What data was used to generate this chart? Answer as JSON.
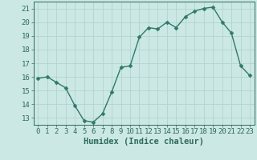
{
  "x": [
    0,
    1,
    2,
    3,
    4,
    5,
    6,
    7,
    8,
    9,
    10,
    11,
    12,
    13,
    14,
    15,
    16,
    17,
    18,
    19,
    20,
    21,
    22,
    23
  ],
  "y": [
    15.9,
    16.0,
    15.6,
    15.2,
    13.9,
    12.8,
    12.7,
    13.3,
    14.9,
    16.7,
    16.8,
    18.9,
    19.6,
    19.5,
    20.0,
    19.6,
    20.4,
    20.8,
    21.0,
    21.1,
    20.0,
    19.2,
    16.8,
    16.1
  ],
  "line_color": "#2d7a6a",
  "marker_color": "#2d7a6a",
  "bg_color": "#cce8e4",
  "grid_color": "#b0d4d0",
  "axis_color": "#2d6b5a",
  "xlabel": "Humidex (Indice chaleur)",
  "xlim": [
    -0.5,
    23.5
  ],
  "ylim": [
    12.5,
    21.5
  ],
  "yticks": [
    13,
    14,
    15,
    16,
    17,
    18,
    19,
    20,
    21
  ],
  "xticks": [
    0,
    1,
    2,
    3,
    4,
    5,
    6,
    7,
    8,
    9,
    10,
    11,
    12,
    13,
    14,
    15,
    16,
    17,
    18,
    19,
    20,
    21,
    22,
    23
  ],
  "xlabel_fontsize": 7.5,
  "tick_fontsize": 6.5,
  "line_width": 1.0,
  "marker_size": 2.5
}
